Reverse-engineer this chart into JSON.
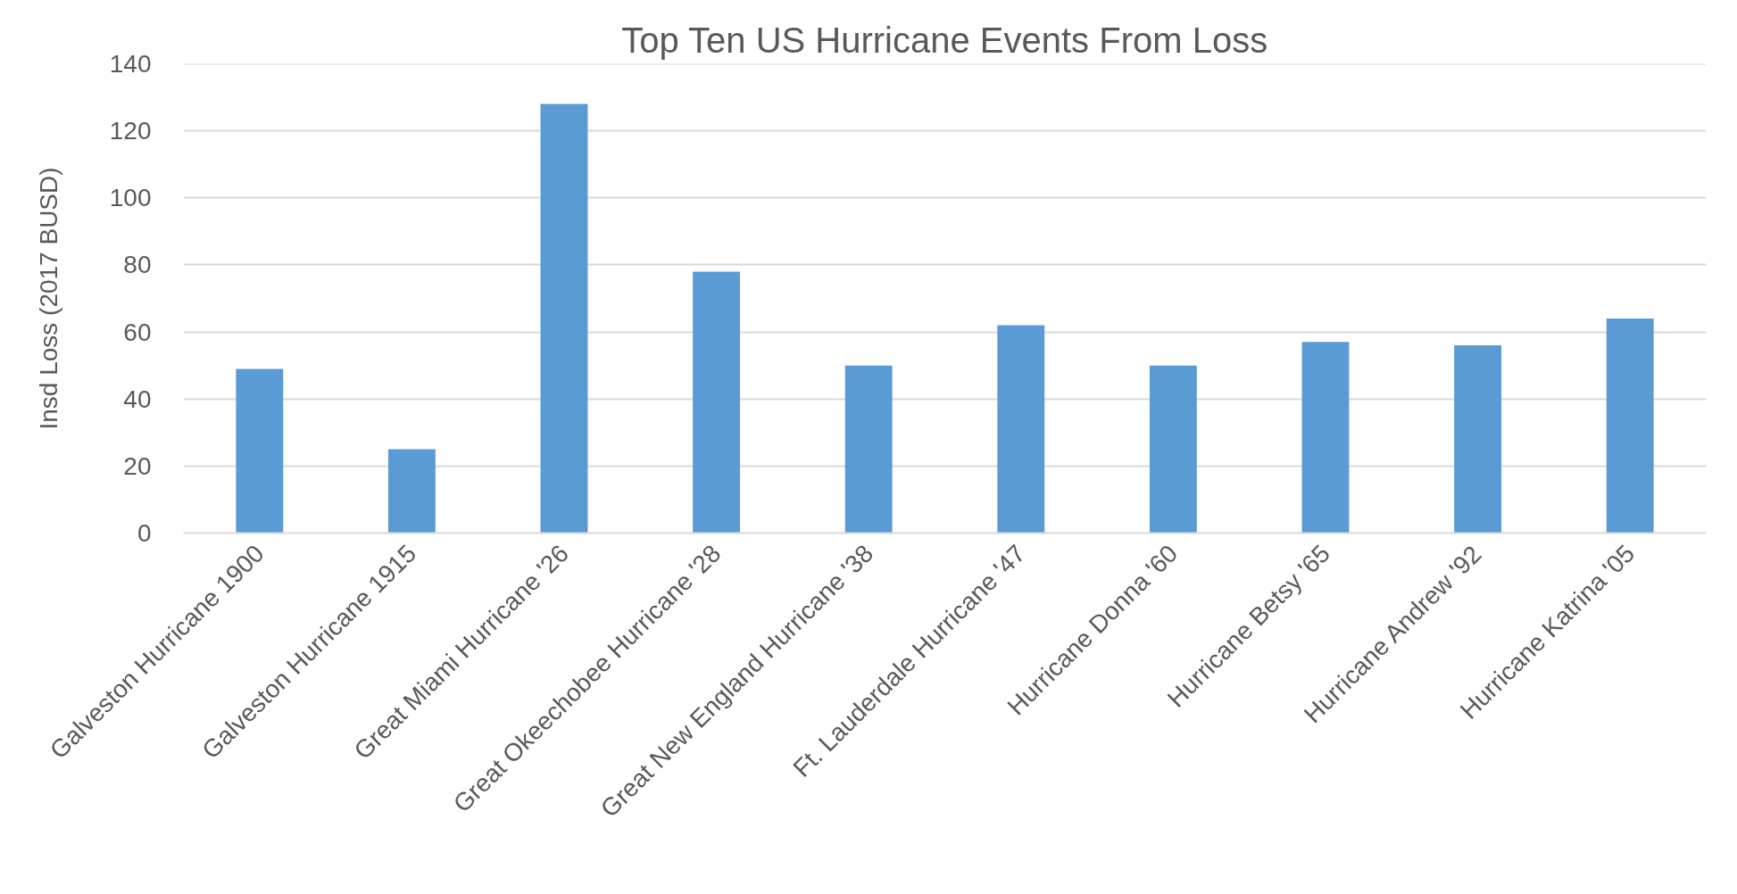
{
  "chart_data": {
    "type": "bar",
    "title": "Top Ten US Hurricane Events From Loss",
    "ylabel": "Insd Loss (2017 BUSD)",
    "categories": [
      "Galveston Hurricane 1900",
      "Galveston Hurricane 1915",
      "Great Miami Hurricane '26",
      "Great Okeechobee Hurricane '28",
      "Great New England Hurricane '38",
      "Ft. Lauderdale Hurricane '47",
      "Hurricane Donna '60",
      "Hurricane Betsy '65",
      "Hurricane Andrew '92",
      "Hurricane Katrina '05"
    ],
    "values": [
      49,
      25,
      128,
      78,
      50,
      62,
      50,
      57,
      56,
      64
    ],
    "color": "#5b9bd5",
    "ylim": [
      0,
      140
    ],
    "yticks": [
      0,
      20,
      40,
      60,
      80,
      100,
      120,
      140
    ],
    "grid": "y"
  }
}
